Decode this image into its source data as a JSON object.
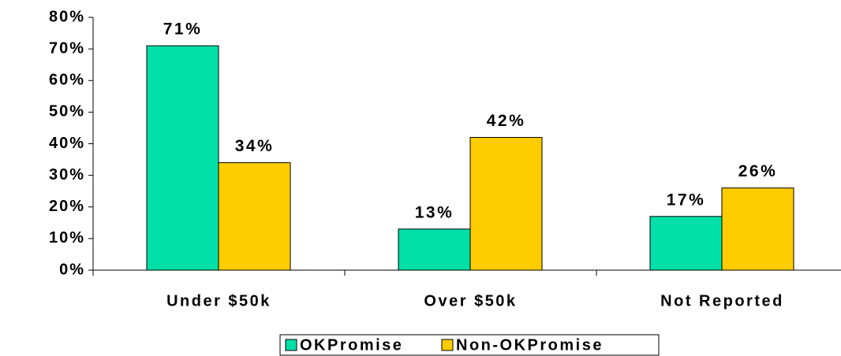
{
  "chart_data": {
    "type": "bar",
    "categories": [
      "Under $50k",
      "Over $50k",
      "Not Reported"
    ],
    "series": [
      {
        "name": "OKPromise",
        "color": "#00e0a8",
        "values": [
          71,
          13,
          17
        ],
        "value_labels": [
          "71%",
          "13%",
          "17%"
        ]
      },
      {
        "name": "Non-OKPromise",
        "color": "#ffcc00",
        "values": [
          34,
          42,
          26
        ],
        "value_labels": [
          "34%",
          "42%",
          "26%"
        ]
      }
    ],
    "ylim": [
      0,
      80
    ],
    "yticks": [
      {
        "value": 0,
        "label": "0%"
      },
      {
        "value": 10,
        "label": "10%"
      },
      {
        "value": 20,
        "label": "20%"
      },
      {
        "value": 30,
        "label": "30%"
      },
      {
        "value": 40,
        "label": "40%"
      },
      {
        "value": 50,
        "label": "50%"
      },
      {
        "value": 60,
        "label": "60%"
      },
      {
        "value": 70,
        "label": "70%"
      },
      {
        "value": 80,
        "label": "80%"
      }
    ],
    "legend": "bottom"
  }
}
